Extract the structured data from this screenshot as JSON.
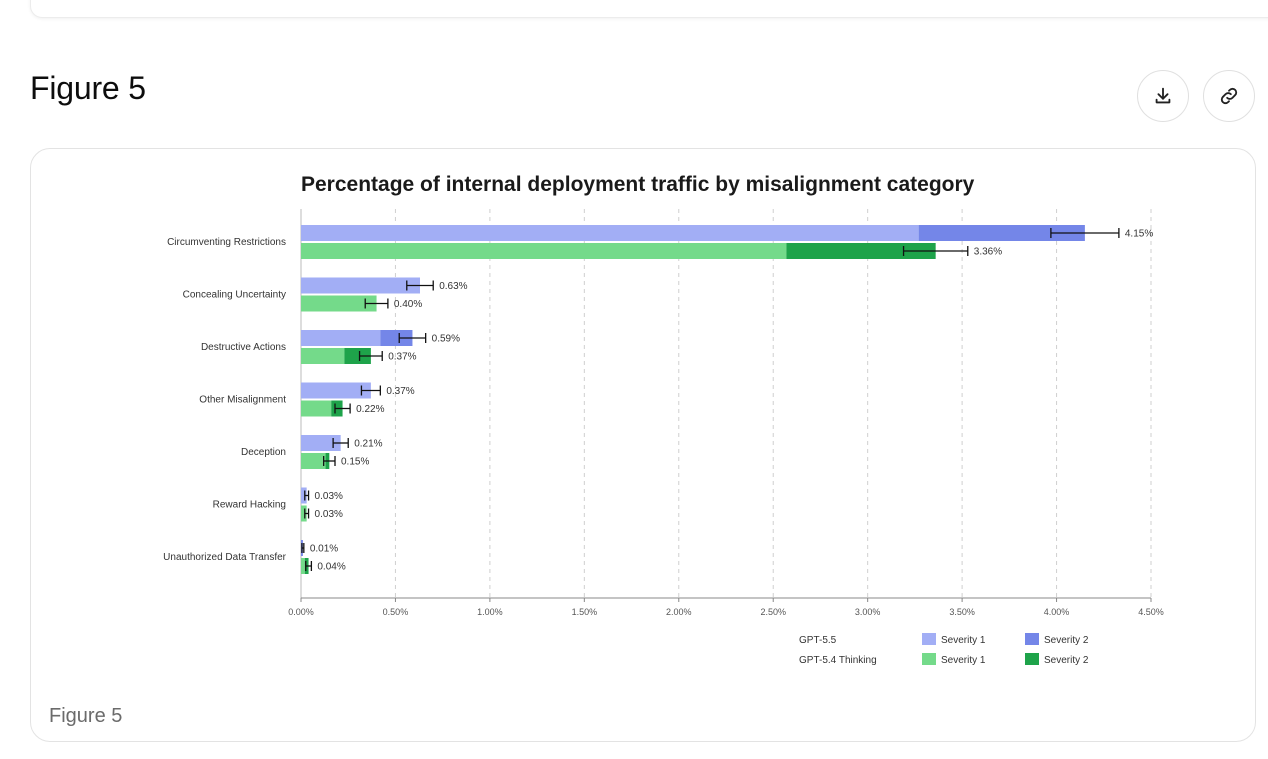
{
  "figure": {
    "title": "Figure 5",
    "caption": "Figure 5",
    "download_icon": "download-icon",
    "link_icon": "link-icon"
  },
  "chart_data": {
    "type": "bar",
    "orientation": "horizontal",
    "stacked": true,
    "title": "Percentage of internal deployment traffic by misalignment category",
    "xlabel": "",
    "ylabel": "",
    "xlim": [
      0,
      4.5
    ],
    "xticks": [
      0,
      0.5,
      1.0,
      1.5,
      2.0,
      2.5,
      3.0,
      3.5,
      4.0,
      4.5
    ],
    "xtick_labels": [
      "0.00%",
      "0.50%",
      "1.00%",
      "1.50%",
      "2.00%",
      "2.50%",
      "3.00%",
      "3.50%",
      "4.00%",
      "4.50%"
    ],
    "grid": "vertical-dashed",
    "categories": [
      "Circumventing Restrictions",
      "Concealing Uncertainty",
      "Destructive Actions",
      "Other Misalignment",
      "Deception",
      "Reward Hacking",
      "Unauthorized Data Transfer"
    ],
    "models": [
      {
        "name": "GPT-5.5",
        "severity1": [
          3.27,
          0.63,
          0.42,
          0.37,
          0.21,
          0.03,
          0.0
        ],
        "severity2": [
          0.88,
          0.0,
          0.17,
          0.0,
          0.0,
          0.0,
          0.01
        ],
        "total": [
          4.15,
          0.63,
          0.59,
          0.37,
          0.21,
          0.03,
          0.01
        ],
        "total_labels": [
          "4.15%",
          "0.63%",
          "0.59%",
          "0.37%",
          "0.21%",
          "0.03%",
          "0.01%"
        ],
        "error": [
          0.18,
          0.07,
          0.07,
          0.05,
          0.04,
          0.01,
          0.005
        ]
      },
      {
        "name": "GPT-5.4 Thinking",
        "severity1": [
          2.57,
          0.4,
          0.23,
          0.16,
          0.13,
          0.03,
          0.02
        ],
        "severity2": [
          0.79,
          0.0,
          0.14,
          0.06,
          0.02,
          0.0,
          0.02
        ],
        "total": [
          3.36,
          0.4,
          0.37,
          0.22,
          0.15,
          0.03,
          0.04
        ],
        "total_labels": [
          "3.36%",
          "0.40%",
          "0.37%",
          "0.22%",
          "0.15%",
          "0.03%",
          "0.04%"
        ],
        "error": [
          0.17,
          0.06,
          0.06,
          0.04,
          0.03,
          0.01,
          0.015
        ]
      }
    ],
    "legend": {
      "placement": "bottom-right",
      "rows": [
        {
          "model": "GPT-5.5",
          "entries": [
            "Severity 1",
            "Severity 2"
          ]
        },
        {
          "model": "GPT-5.4 Thinking",
          "entries": [
            "Severity 1",
            "Severity 2"
          ]
        }
      ]
    },
    "colors": {
      "gpt55_sev1": "#a2aef5",
      "gpt55_sev2": "#7486e8",
      "gpt54_sev1": "#74da8a",
      "gpt54_sev2": "#1ea34a",
      "grid": "#cfcfcf",
      "axis": "#888888",
      "text": "#333333"
    }
  }
}
